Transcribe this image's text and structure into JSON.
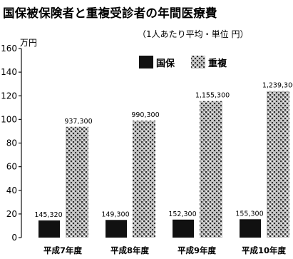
{
  "chart_data": {
    "type": "bar",
    "title": "国保被保険者と重複受診者の年間医療費",
    "subtitle": "（1人あたり平均・単位 円）",
    "ylabel": "万円",
    "xlabel": "",
    "ylim": [
      0,
      160
    ],
    "yticks": [
      0,
      20,
      40,
      60,
      80,
      100,
      120,
      140,
      160
    ],
    "grid": false,
    "legend_position": "top-right",
    "categories": [
      "平成7年度",
      "平成8年度",
      "平成9年度",
      "平成10年度"
    ],
    "series": [
      {
        "name": "国保",
        "color": "#111111",
        "pattern": "solid",
        "values": [
          145320,
          149300,
          152300,
          155300
        ],
        "labels": [
          "145,320",
          "149,300",
          "152,300",
          "155,300"
        ]
      },
      {
        "name": "重複",
        "color": "#777777",
        "pattern": "dotted-hatch",
        "values": [
          937300,
          990300,
          1155300,
          1239300
        ],
        "labels": [
          "937,300",
          "990,300",
          "1,155,300",
          "1,239,300"
        ]
      }
    ]
  }
}
